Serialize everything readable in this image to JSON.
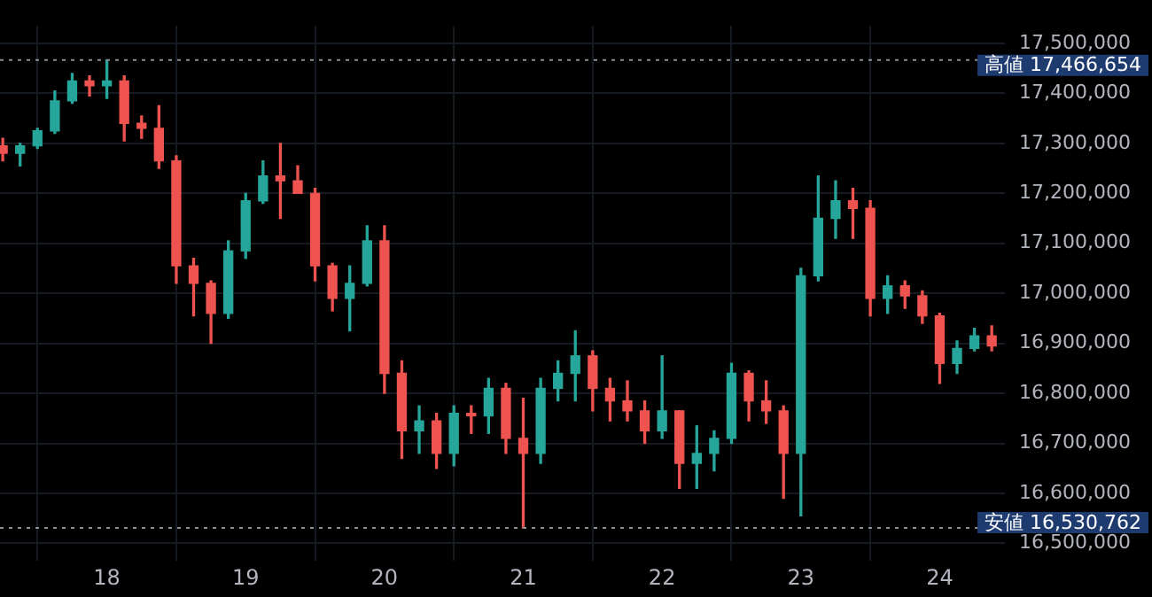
{
  "chart_data": {
    "type": "candlestick",
    "x": [
      17.25,
      17.375,
      17.5,
      17.625,
      17.75,
      17.875,
      18,
      18.125,
      18.25,
      18.375,
      18.5,
      18.625,
      18.75,
      18.875,
      19,
      19.125,
      19.25,
      19.375,
      19.5,
      19.625,
      19.75,
      19.875,
      20,
      20.125,
      20.25,
      20.375,
      20.5,
      20.625,
      20.75,
      20.875,
      21,
      21.125,
      21.25,
      21.375,
      21.5,
      21.625,
      21.75,
      21.875,
      22,
      22.125,
      22.25,
      22.375,
      22.5,
      22.625,
      22.75,
      22.875,
      23,
      23.125,
      23.25,
      23.375,
      23.5,
      23.625,
      23.75,
      23.875,
      24,
      24.125,
      24.25,
      24.375
    ],
    "ohlc": [
      [
        17295000,
        17310000,
        17265000,
        17280000
      ],
      [
        17280000,
        17300000,
        17255000,
        17295000
      ],
      [
        17295000,
        17330000,
        17290000,
        17325000
      ],
      [
        17325000,
        17405000,
        17320000,
        17385000
      ],
      [
        17385000,
        17440000,
        17380000,
        17425000
      ],
      [
        17425000,
        17435000,
        17395000,
        17415000
      ],
      [
        17415000,
        17466654,
        17390000,
        17425000
      ],
      [
        17425000,
        17435000,
        17305000,
        17340000
      ],
      [
        17340000,
        17355000,
        17310000,
        17330000
      ],
      [
        17330000,
        17375000,
        17250000,
        17265000
      ],
      [
        17265000,
        17275000,
        17020000,
        17055000
      ],
      [
        17055000,
        17070000,
        16955000,
        17020000
      ],
      [
        17020000,
        17025000,
        16900000,
        16960000
      ],
      [
        16960000,
        17105000,
        16950000,
        17085000
      ],
      [
        17085000,
        17200000,
        17070000,
        17185000
      ],
      [
        17185000,
        17265000,
        17180000,
        17235000
      ],
      [
        17235000,
        17300000,
        17150000,
        17225000
      ],
      [
        17225000,
        17255000,
        17200000,
        17200000
      ],
      [
        17200000,
        17210000,
        17025000,
        17055000
      ],
      [
        17055000,
        17060000,
        16965000,
        16990000
      ],
      [
        16990000,
        17055000,
        16925000,
        17020000
      ],
      [
        17020000,
        17135000,
        17015000,
        17105000
      ],
      [
        17105000,
        17135000,
        16800000,
        16840000
      ],
      [
        16840000,
        16865000,
        16670000,
        16725000
      ],
      [
        16725000,
        16775000,
        16680000,
        16745000
      ],
      [
        16745000,
        16760000,
        16650000,
        16680000
      ],
      [
        16680000,
        16775000,
        16655000,
        16760000
      ],
      [
        16760000,
        16775000,
        16720000,
        16755000
      ],
      [
        16755000,
        16830000,
        16720000,
        16810000
      ],
      [
        16810000,
        16820000,
        16680000,
        16710000
      ],
      [
        16710000,
        16790000,
        16530762,
        16680000
      ],
      [
        16680000,
        16830000,
        16660000,
        16810000
      ],
      [
        16810000,
        16865000,
        16785000,
        16840000
      ],
      [
        16840000,
        16925000,
        16785000,
        16875000
      ],
      [
        16875000,
        16885000,
        16765000,
        16810000
      ],
      [
        16810000,
        16830000,
        16745000,
        16785000
      ],
      [
        16785000,
        16825000,
        16745000,
        16765000
      ],
      [
        16765000,
        16785000,
        16700000,
        16725000
      ],
      [
        16725000,
        16875000,
        16710000,
        16765000
      ],
      [
        16765000,
        16765000,
        16610000,
        16660000
      ],
      [
        16660000,
        16735000,
        16610000,
        16680000
      ],
      [
        16680000,
        16725000,
        16645000,
        16710000
      ],
      [
        16710000,
        16860000,
        16700000,
        16840000
      ],
      [
        16840000,
        16845000,
        16745000,
        16785000
      ],
      [
        16785000,
        16825000,
        16740000,
        16765000
      ],
      [
        16765000,
        16775000,
        16590000,
        16680000
      ],
      [
        16680000,
        17050000,
        16555000,
        17035000
      ],
      [
        17035000,
        17235000,
        17025000,
        17150000
      ],
      [
        17150000,
        17225000,
        17110000,
        17185000
      ],
      [
        17185000,
        17210000,
        17110000,
        17170000
      ],
      [
        17170000,
        17185000,
        16955000,
        16990000
      ],
      [
        16990000,
        17035000,
        16960000,
        17015000
      ],
      [
        17015000,
        17025000,
        16970000,
        16995000
      ],
      [
        16995000,
        17005000,
        16940000,
        16955000
      ],
      [
        16955000,
        16960000,
        16820000,
        16860000
      ],
      [
        16860000,
        16905000,
        16840000,
        16890000
      ],
      [
        16890000,
        16930000,
        16885000,
        16915000
      ],
      [
        16915000,
        16935000,
        16885000,
        16895000
      ]
    ],
    "colors": [
      "#ef5350",
      "#26a69a",
      "#26a69a",
      "#26a69a",
      "#26a69a",
      "#ef5350",
      "#26a69a",
      "#ef5350",
      "#ef5350",
      "#ef5350",
      "#ef5350",
      "#ef5350",
      "#ef5350",
      "#26a69a",
      "#26a69a",
      "#26a69a",
      "#ef5350",
      "#ef5350",
      "#ef5350",
      "#ef5350",
      "#26a69a",
      "#26a69a",
      "#ef5350",
      "#ef5350",
      "#26a69a",
      "#ef5350",
      "#26a69a",
      "#ef5350",
      "#26a69a",
      "#ef5350",
      "#ef5350",
      "#26a69a",
      "#26a69a",
      "#26a69a",
      "#ef5350",
      "#ef5350",
      "#ef5350",
      "#ef5350",
      "#26a69a",
      "#ef5350",
      "#26a69a",
      "#26a69a",
      "#26a69a",
      "#ef5350",
      "#ef5350",
      "#ef5350",
      "#26a69a",
      "#26a69a",
      "#26a69a",
      "#ef5350",
      "#ef5350",
      "#26a69a",
      "#ef5350",
      "#ef5350",
      "#ef5350",
      "#26a69a",
      "#26a69a",
      "#ef5350"
    ],
    "xlim": [
      17.23,
      24.47
    ],
    "xticks": [
      18,
      19,
      20,
      21,
      22,
      23,
      24
    ],
    "ylim": [
      16465000,
      17535000
    ],
    "yticks": [
      {
        "value": 16500000,
        "label": "16,500,000"
      },
      {
        "value": 16600000,
        "label": "16,600,000"
      },
      {
        "value": 16700000,
        "label": "16,700,000"
      },
      {
        "value": 16800000,
        "label": "16,800,000"
      },
      {
        "value": 16900000,
        "label": "16,900,000"
      },
      {
        "value": 17000000,
        "label": "17,000,000"
      },
      {
        "value": 17100000,
        "label": "17,100,000"
      },
      {
        "value": 17200000,
        "label": "17,200,000"
      },
      {
        "value": 17300000,
        "label": "17,300,000"
      },
      {
        "value": 17400000,
        "label": "17,400,000"
      },
      {
        "value": 17500000,
        "label": "17,500,000"
      }
    ],
    "grid": true,
    "legend": false,
    "ref_lines": [
      {
        "axis": "y",
        "value": 17466654,
        "label": "高値 17,466,654",
        "color": "#8a8f98",
        "line_style": "dotted"
      },
      {
        "axis": "y",
        "value": 16530762,
        "label": "安値 16,530,762",
        "color": "#8a8f98",
        "line_style": "dotted"
      }
    ]
  }
}
